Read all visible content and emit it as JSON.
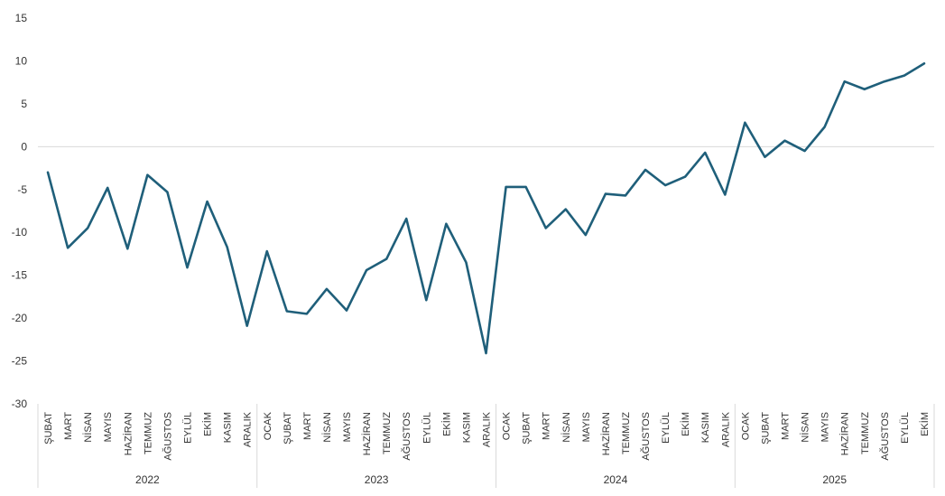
{
  "chart_data": {
    "type": "line",
    "title": "",
    "xlabel": "",
    "ylabel": "",
    "ylim": [
      -30,
      15
    ],
    "y_ticks": [
      15,
      10,
      5,
      0,
      -5,
      -10,
      -15,
      -20,
      -25,
      -30
    ],
    "grid": false,
    "zero_line": true,
    "line_color": "#1f5f7a",
    "axis_color": "#d9d9d9",
    "years": [
      {
        "label": "2022",
        "count": 11
      },
      {
        "label": "2023",
        "count": 12
      },
      {
        "label": "2024",
        "count": 12
      },
      {
        "label": "2025",
        "count": 10
      }
    ],
    "categories": [
      "ŞUBAT",
      "MART",
      "NİSAN",
      "MAYIS",
      "HAZİRAN",
      "TEMMUZ",
      "AĞUSTOS",
      "EYLÜL",
      "EKİM",
      "KASIM",
      "ARALIK",
      "OCAK",
      "ŞUBAT",
      "MART",
      "NİSAN",
      "MAYIS",
      "HAZİRAN",
      "TEMMUZ",
      "AĞUSTOS",
      "EYLÜL",
      "EKİM",
      "KASIM",
      "ARALIK",
      "OCAK",
      "ŞUBAT",
      "MART",
      "NİSAN",
      "MAYIS",
      "HAZİRAN",
      "TEMMUZ",
      "AĞUSTOS",
      "EYLÜL",
      "EKİM",
      "KASIM",
      "ARALIK",
      "OCAK",
      "ŞUBAT",
      "MART",
      "NİSAN",
      "MAYIS",
      "HAZİRAN",
      "TEMMUZ",
      "AĞUSTOS",
      "EYLÜL",
      "EKİM"
    ],
    "series": [
      {
        "values": [
          -3.0,
          -11.8,
          -9.5,
          -4.8,
          -11.9,
          -3.3,
          -5.3,
          -14.1,
          -6.4,
          -11.7,
          -20.9,
          -12.2,
          -19.2,
          -19.5,
          -16.6,
          -19.1,
          -14.4,
          -13.1,
          -8.4,
          -17.9,
          -9.0,
          -13.5,
          -24.1,
          -4.7,
          -4.7,
          -9.5,
          -7.3,
          -10.3,
          -5.5,
          -5.7,
          -2.7,
          -4.5,
          -3.5,
          -0.7,
          -5.6,
          2.8,
          -1.2,
          0.7,
          -0.5,
          2.3,
          7.6,
          6.7,
          7.6,
          8.3,
          9.7
        ]
      }
    ]
  }
}
